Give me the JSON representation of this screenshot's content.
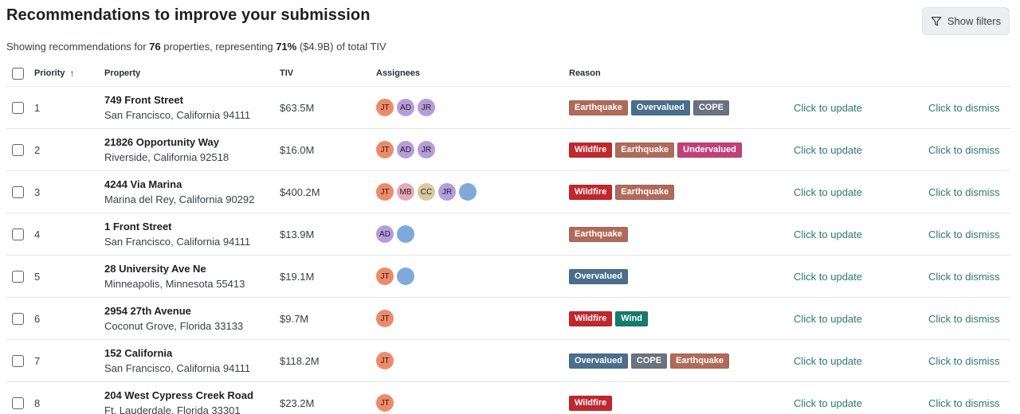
{
  "page": {
    "title": "Recommendations to improve your submission",
    "filters_label": "Show filters",
    "filters_icon": "filter-icon",
    "summary": {
      "prefix": "Showing recommendations for ",
      "count": "76",
      "middle": " properties, representing ",
      "percent": "71%",
      "suffix": " ($4.9B) of total TIV"
    }
  },
  "table": {
    "headers": {
      "priority": "Priority",
      "property": "Property",
      "tiv": "TIV",
      "assignees": "Assignees",
      "reason": "Reason"
    },
    "sort_icon": "arrow-up-icon",
    "update_label": "Click to update",
    "dismiss_label": "Click to dismiss",
    "rows": [
      {
        "priority": "1",
        "name": "749 Front Street",
        "address": "San Francisco, California 94111",
        "tiv": "$63.5M",
        "assignees": [
          "JT",
          "AD",
          "JR"
        ],
        "reasons": [
          "Earthquake",
          "Overvalued",
          "COPE"
        ]
      },
      {
        "priority": "2",
        "name": "21826 Opportunity Way",
        "address": "Riverside, California 92518",
        "tiv": "$16.0M",
        "assignees": [
          "JT",
          "AD",
          "JR"
        ],
        "reasons": [
          "Wildfire",
          "Earthquake",
          "Undervalued"
        ]
      },
      {
        "priority": "3",
        "name": "4244 Via Marina",
        "address": "Marina del Rey, California 90292",
        "tiv": "$400.2M",
        "assignees": [
          "JT",
          "MB",
          "CC",
          "JR",
          ""
        ],
        "reasons": [
          "Wildfire",
          "Earthquake"
        ]
      },
      {
        "priority": "4",
        "name": "1 Front Street",
        "address": "San Francisco, California 94111",
        "tiv": "$13.9M",
        "assignees": [
          "AD",
          ""
        ],
        "reasons": [
          "Earthquake"
        ]
      },
      {
        "priority": "5",
        "name": "28 University Ave Ne",
        "address": "Minneapolis, Minnesota 55413",
        "tiv": "$19.1M",
        "assignees": [
          "JT",
          ""
        ],
        "reasons": [
          "Overvalued"
        ]
      },
      {
        "priority": "6",
        "name": "2954 27th Avenue",
        "address": "Coconut Grove, Florida 33133",
        "tiv": "$9.7M",
        "assignees": [
          "JT"
        ],
        "reasons": [
          "Wildfire",
          "Wind"
        ]
      },
      {
        "priority": "7",
        "name": "152 California",
        "address": "San Francisco, California 94111",
        "tiv": "$118.2M",
        "assignees": [
          "JT"
        ],
        "reasons": [
          "Overvalued",
          "COPE",
          "Earthquake"
        ]
      },
      {
        "priority": "8",
        "name": "204 West Cypress Creek Road",
        "address": "Ft. Lauderdale, Florida 33301",
        "tiv": "$23.2M",
        "assignees": [
          "JT"
        ],
        "reasons": [
          "Wildfire"
        ]
      }
    ]
  },
  "colors": {
    "tags": {
      "Earthquake": "#b06a5b",
      "Overvalued": "#4a6f8c",
      "COPE": "#6b7280",
      "Wildfire": "#c1272d",
      "Undervalued": "#c2407a",
      "Wind": "#167a6e"
    },
    "avatars": {
      "JT": "#ee8a6a",
      "AD": "#b59ddb",
      "JR": "#b59ddb",
      "MB": "#e6a9b9",
      "CC": "#d9c8a0",
      "": "#7fa9dc"
    },
    "link": "#2c7a6b"
  }
}
